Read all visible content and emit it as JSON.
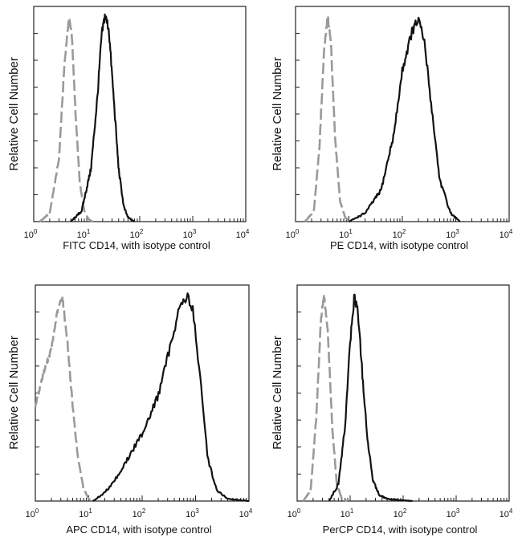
{
  "colors": {
    "isotype": "#9a9a9a",
    "cd14": "#111111",
    "frame": "#222222",
    "background": "#ffffff"
  },
  "chart_data": [
    {
      "type": "line",
      "panel": "top-left",
      "xlabel": "FITC  CD14,  with isotype control",
      "ylabel": "Relative Cell Number",
      "x_scale": "log",
      "xlim": [
        1,
        10000
      ],
      "ylim": [
        0,
        1
      ],
      "x_ticks": [
        {
          "base": "10",
          "exp": "0"
        },
        {
          "base": "10",
          "exp": "1"
        },
        {
          "base": "10",
          "exp": "2"
        },
        {
          "base": "10",
          "exp": "3"
        },
        {
          "base": "10",
          "exp": "4"
        }
      ],
      "series": [
        {
          "name": "isotype control",
          "style": "dashed",
          "color": "#9a9a9a",
          "x": [
            1.3,
            2,
            3,
            3.8,
            4.6,
            5.2,
            6.2,
            7.4,
            9,
            11,
            13
          ],
          "y": [
            0.0,
            0.04,
            0.3,
            0.75,
            0.97,
            0.9,
            0.5,
            0.18,
            0.05,
            0.01,
            0.0
          ]
        },
        {
          "name": "CD14",
          "style": "solid",
          "color": "#111111",
          "x": [
            5,
            8,
            12,
            16,
            19,
            22,
            26,
            32,
            40,
            50,
            60,
            80
          ],
          "y": [
            0.0,
            0.05,
            0.25,
            0.6,
            0.88,
            0.98,
            0.92,
            0.6,
            0.25,
            0.07,
            0.02,
            0.0
          ]
        }
      ]
    },
    {
      "type": "line",
      "panel": "top-right",
      "xlabel": "PE CD14,  with isotype control",
      "ylabel": "Relative Cell Number",
      "x_scale": "log",
      "xlim": [
        1,
        10000
      ],
      "ylim": [
        0,
        1
      ],
      "x_ticks": [
        {
          "base": "10",
          "exp": "0"
        },
        {
          "base": "10",
          "exp": "1"
        },
        {
          "base": "10",
          "exp": "2"
        },
        {
          "base": "10",
          "exp": "3"
        },
        {
          "base": "10",
          "exp": "4"
        }
      ],
      "series": [
        {
          "name": "isotype control",
          "style": "dashed",
          "color": "#9a9a9a",
          "x": [
            1.5,
            2.2,
            2.8,
            3.4,
            4.0,
            4.6,
            5.5,
            6.8,
            8.5,
            10.5
          ],
          "y": [
            0.0,
            0.05,
            0.35,
            0.8,
            0.98,
            0.85,
            0.4,
            0.1,
            0.02,
            0.0
          ]
        },
        {
          "name": "CD14",
          "style": "solid",
          "color": "#111111",
          "x": [
            10,
            20,
            40,
            70,
            100,
            150,
            200,
            260,
            350,
            500,
            800,
            1200
          ],
          "y": [
            0.0,
            0.04,
            0.15,
            0.42,
            0.72,
            0.9,
            0.96,
            0.85,
            0.55,
            0.2,
            0.04,
            0.0
          ]
        }
      ]
    },
    {
      "type": "line",
      "panel": "bottom-left",
      "xlabel": "APC CD14, with isotype control",
      "ylabel": "Relative Cell Number",
      "x_scale": "log",
      "xlim": [
        1,
        10000
      ],
      "ylim": [
        0,
        1
      ],
      "x_ticks": [
        {
          "base": "10",
          "exp": "0"
        },
        {
          "base": "10",
          "exp": "1"
        },
        {
          "base": "10",
          "exp": "2"
        },
        {
          "base": "10",
          "exp": "3"
        },
        {
          "base": "10",
          "exp": "4"
        }
      ],
      "series": [
        {
          "name": "isotype control",
          "style": "dashed",
          "color": "#9a9a9a",
          "x": [
            1,
            1.4,
            2,
            2.6,
            3.2,
            4,
            5,
            6.3,
            8,
            10,
            12
          ],
          "y": [
            0.45,
            0.6,
            0.72,
            0.9,
            0.97,
            0.75,
            0.45,
            0.2,
            0.06,
            0.01,
            0.0
          ]
        },
        {
          "name": "CD14",
          "style": "solid",
          "color": "#111111",
          "x": [
            12,
            20,
            35,
            60,
            100,
            200,
            350,
            500,
            700,
            900,
            1200,
            1700,
            2500,
            4000,
            10000
          ],
          "y": [
            0.0,
            0.04,
            0.12,
            0.22,
            0.32,
            0.5,
            0.75,
            0.92,
            0.97,
            0.9,
            0.6,
            0.2,
            0.05,
            0.01,
            0.0
          ]
        }
      ]
    },
    {
      "type": "line",
      "panel": "bottom-right",
      "xlabel": "PerCP CD14, with isotype control",
      "ylabel": "Relative Cell Number",
      "x_scale": "log",
      "xlim": [
        1,
        10000
      ],
      "ylim": [
        0,
        1
      ],
      "x_ticks": [
        {
          "base": "10",
          "exp": "0"
        },
        {
          "base": "10",
          "exp": "1"
        },
        {
          "base": "10",
          "exp": "2"
        },
        {
          "base": "10",
          "exp": "3"
        },
        {
          "base": "10",
          "exp": "4"
        }
      ],
      "series": [
        {
          "name": "isotype control",
          "style": "dashed",
          "color": "#9a9a9a",
          "x": [
            1.3,
            1.8,
            2.3,
            2.8,
            3.2,
            3.8,
            4.6,
            5.6,
            7,
            9
          ],
          "y": [
            0.0,
            0.05,
            0.4,
            0.85,
            0.98,
            0.8,
            0.35,
            0.08,
            0.01,
            0.0
          ]
        },
        {
          "name": "CD14",
          "style": "solid",
          "color": "#111111",
          "x": [
            4,
            6,
            8,
            10,
            12,
            14,
            17,
            21,
            27,
            35,
            50,
            80,
            150
          ],
          "y": [
            0.0,
            0.08,
            0.35,
            0.75,
            0.97,
            0.9,
            0.6,
            0.3,
            0.1,
            0.03,
            0.01,
            0.005,
            0.0
          ]
        }
      ]
    }
  ]
}
